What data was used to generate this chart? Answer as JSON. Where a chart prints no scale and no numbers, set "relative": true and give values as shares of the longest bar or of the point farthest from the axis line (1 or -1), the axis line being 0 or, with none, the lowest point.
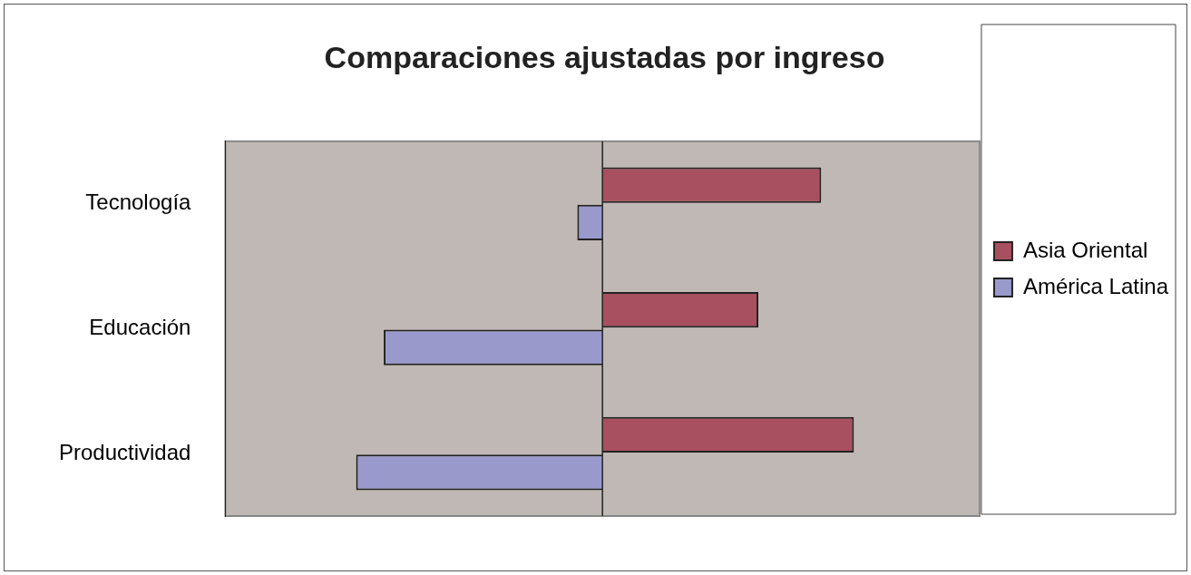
{
  "chart_data": {
    "type": "bar",
    "orientation": "horizontal",
    "relative": true,
    "title": "Comparaciones ajustadas por ingreso",
    "categories": [
      "Tecnología",
      "Educación",
      "Productividad"
    ],
    "series": [
      {
        "name": "Asia Oriental",
        "color": "#a8505f",
        "values": [
          0.87,
          0.62,
          1
        ]
      },
      {
        "name": "América Latina",
        "color": "#9999cc",
        "values": [
          -0.1,
          -0.87,
          -0.98
        ]
      }
    ],
    "legend": "right",
    "grid": false
  }
}
